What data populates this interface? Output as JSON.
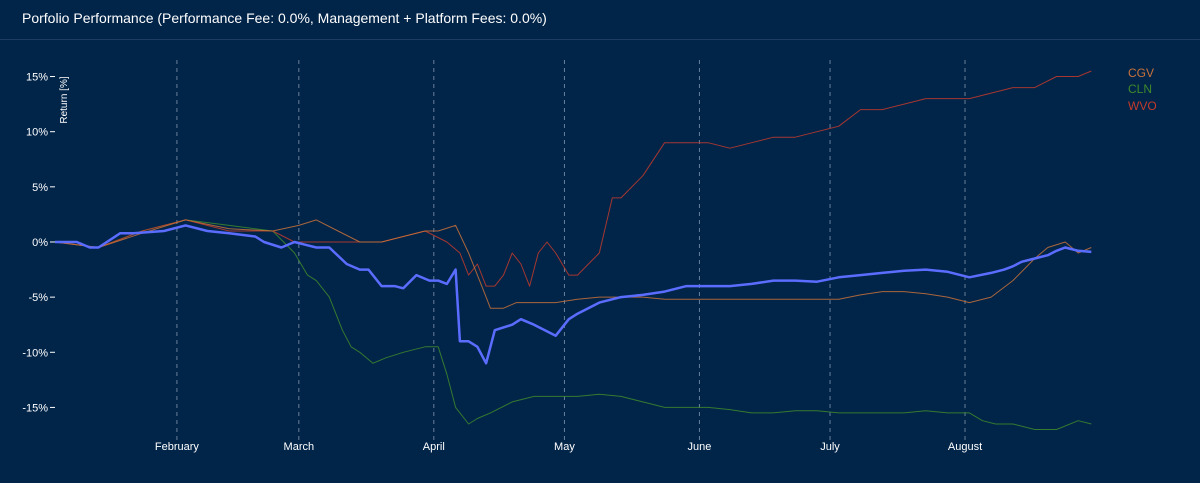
{
  "header": {
    "title": "Porfolio Performance (Performance Fee: 0.0%, Management + Platform Fees: 0.0%)"
  },
  "colors": {
    "background": "#012449",
    "portfolio": "#5a6dff",
    "CGV": "#c8723a",
    "CLN": "#3d8a2c",
    "WVO": "#c23b2b",
    "grid": "#6b7f99"
  },
  "chart_data": {
    "type": "line",
    "title": "Porfolio Performance (Performance Fee: 0.0%, Management + Platform Fees: 0.0%)",
    "ylabel": "Return [%]",
    "xlabel": "",
    "xlim": [
      0,
      240
    ],
    "ylim": [
      -17.5,
      16.5
    ],
    "y_ticks": [
      15,
      10,
      5,
      0,
      -5,
      -10,
      -15
    ],
    "y_tick_labels": [
      "15%",
      "10%",
      "5%",
      "0%",
      "-5%",
      "-10%",
      "-15%"
    ],
    "x_ticks": [
      28,
      56,
      87,
      117,
      148,
      178,
      209
    ],
    "x_tick_labels": [
      "February",
      "March",
      "April",
      "May",
      "June",
      "July",
      "August"
    ],
    "legend": [
      "CGV",
      "CLN",
      "WVO"
    ],
    "legend_position": "top-right",
    "series": [
      {
        "name": "Portfolio",
        "x": [
          0,
          5,
          8,
          10,
          15,
          18,
          25,
          30,
          35,
          40,
          46,
          48,
          52,
          55,
          58,
          60,
          63,
          67,
          70,
          72,
          75,
          78,
          80,
          83,
          86,
          88,
          90,
          92,
          93,
          95,
          97,
          99,
          101,
          105,
          107,
          110,
          115,
          118,
          120,
          125,
          130,
          135,
          140,
          145,
          150,
          155,
          160,
          165,
          170,
          175,
          180,
          185,
          190,
          195,
          200,
          205,
          210,
          215,
          218,
          220,
          222,
          225,
          228,
          230,
          232,
          235,
          238
        ],
        "y": [
          0,
          0,
          -0.5,
          -0.5,
          0.8,
          0.8,
          1,
          1.5,
          1,
          0.8,
          0.5,
          0,
          -0.5,
          0,
          -0.3,
          -0.5,
          -0.5,
          -2,
          -2.5,
          -2.5,
          -4,
          -4,
          -4.2,
          -3,
          -3.5,
          -3.5,
          -3.8,
          -2.5,
          -9,
          -9,
          -9.5,
          -11,
          -8,
          -7.5,
          -7,
          -7.5,
          -8.5,
          -7,
          -6.5,
          -5.5,
          -5,
          -4.8,
          -4.5,
          -4,
          -4,
          -4,
          -3.8,
          -3.5,
          -3.5,
          -3.6,
          -3.2,
          -3,
          -2.8,
          -2.6,
          -2.5,
          -2.7,
          -3.2,
          -2.8,
          -2.5,
          -2.2,
          -1.8,
          -1.5,
          -1.2,
          -0.8,
          -0.5,
          -0.8,
          -0.9
        ]
      },
      {
        "name": "CGV",
        "x": [
          0,
          10,
          20,
          30,
          40,
          50,
          56,
          60,
          65,
          70,
          75,
          80,
          85,
          88,
          92,
          95,
          97,
          99,
          100,
          103,
          106,
          110,
          115,
          120,
          125,
          130,
          135,
          140,
          145,
          150,
          155,
          160,
          165,
          170,
          175,
          180,
          185,
          190,
          195,
          200,
          205,
          210,
          215,
          220,
          225,
          228,
          232,
          235,
          238
        ],
        "y": [
          0,
          -0.5,
          0.8,
          2,
          1.2,
          1,
          1.5,
          2,
          1,
          0,
          0,
          0.5,
          1,
          1,
          1.5,
          -1,
          -3,
          -5,
          -6,
          -6,
          -5.5,
          -5.5,
          -5.5,
          -5.2,
          -5,
          -5,
          -5,
          -5.2,
          -5.2,
          -5.2,
          -5.2,
          -5.2,
          -5.2,
          -5.2,
          -5.2,
          -5.2,
          -4.8,
          -4.5,
          -4.5,
          -4.7,
          -5,
          -5.5,
          -5,
          -3.5,
          -1.5,
          -0.5,
          0,
          -1,
          -0.5
        ]
      },
      {
        "name": "CLN",
        "x": [
          0,
          10,
          20,
          30,
          40,
          50,
          55,
          58,
          60,
          63,
          66,
          68,
          70,
          73,
          76,
          80,
          85,
          88,
          90,
          92,
          95,
          97,
          100,
          105,
          110,
          115,
          120,
          125,
          130,
          135,
          140,
          145,
          150,
          155,
          160,
          165,
          170,
          175,
          180,
          185,
          190,
          195,
          200,
          205,
          210,
          213,
          216,
          220,
          225,
          230,
          235,
          238
        ],
        "y": [
          0,
          -0.5,
          1,
          2,
          1.5,
          1,
          -1,
          -3,
          -3.5,
          -5,
          -8,
          -9.5,
          -10,
          -11,
          -10.5,
          -10,
          -9.5,
          -9.5,
          -12,
          -15,
          -16.5,
          -16,
          -15.5,
          -14.5,
          -14,
          -14,
          -14,
          -13.8,
          -14,
          -14.5,
          -15,
          -15,
          -15,
          -15.2,
          -15.5,
          -15.5,
          -15.3,
          -15.3,
          -15.5,
          -15.5,
          -15.5,
          -15.5,
          -15.3,
          -15.5,
          -15.5,
          -16.2,
          -16.5,
          -16.5,
          -17,
          -17,
          -16.2,
          -16.5
        ]
      },
      {
        "name": "WVO",
        "x": [
          0,
          10,
          20,
          30,
          40,
          50,
          55,
          60,
          65,
          70,
          75,
          80,
          85,
          90,
          93,
          95,
          97,
          99,
          101,
          103,
          105,
          107,
          109,
          111,
          113,
          115,
          118,
          120,
          125,
          128,
          130,
          135,
          140,
          145,
          150,
          155,
          160,
          165,
          170,
          175,
          180,
          185,
          190,
          195,
          200,
          205,
          210,
          215,
          220,
          225,
          230,
          235,
          238
        ],
        "y": [
          0,
          -0.5,
          1,
          2,
          1,
          1,
          0,
          0,
          0,
          0,
          0,
          0.5,
          1,
          0,
          -1,
          -3,
          -2,
          -4,
          -4,
          -3,
          -1,
          -2,
          -4,
          -1,
          0,
          -1,
          -3,
          -3,
          -1,
          4,
          4,
          6,
          9,
          9,
          9,
          8.5,
          9,
          9.5,
          9.5,
          10,
          10.5,
          12,
          12,
          12.5,
          13,
          13,
          13,
          13.5,
          14,
          14,
          15,
          15,
          15.5
        ]
      }
    ]
  }
}
